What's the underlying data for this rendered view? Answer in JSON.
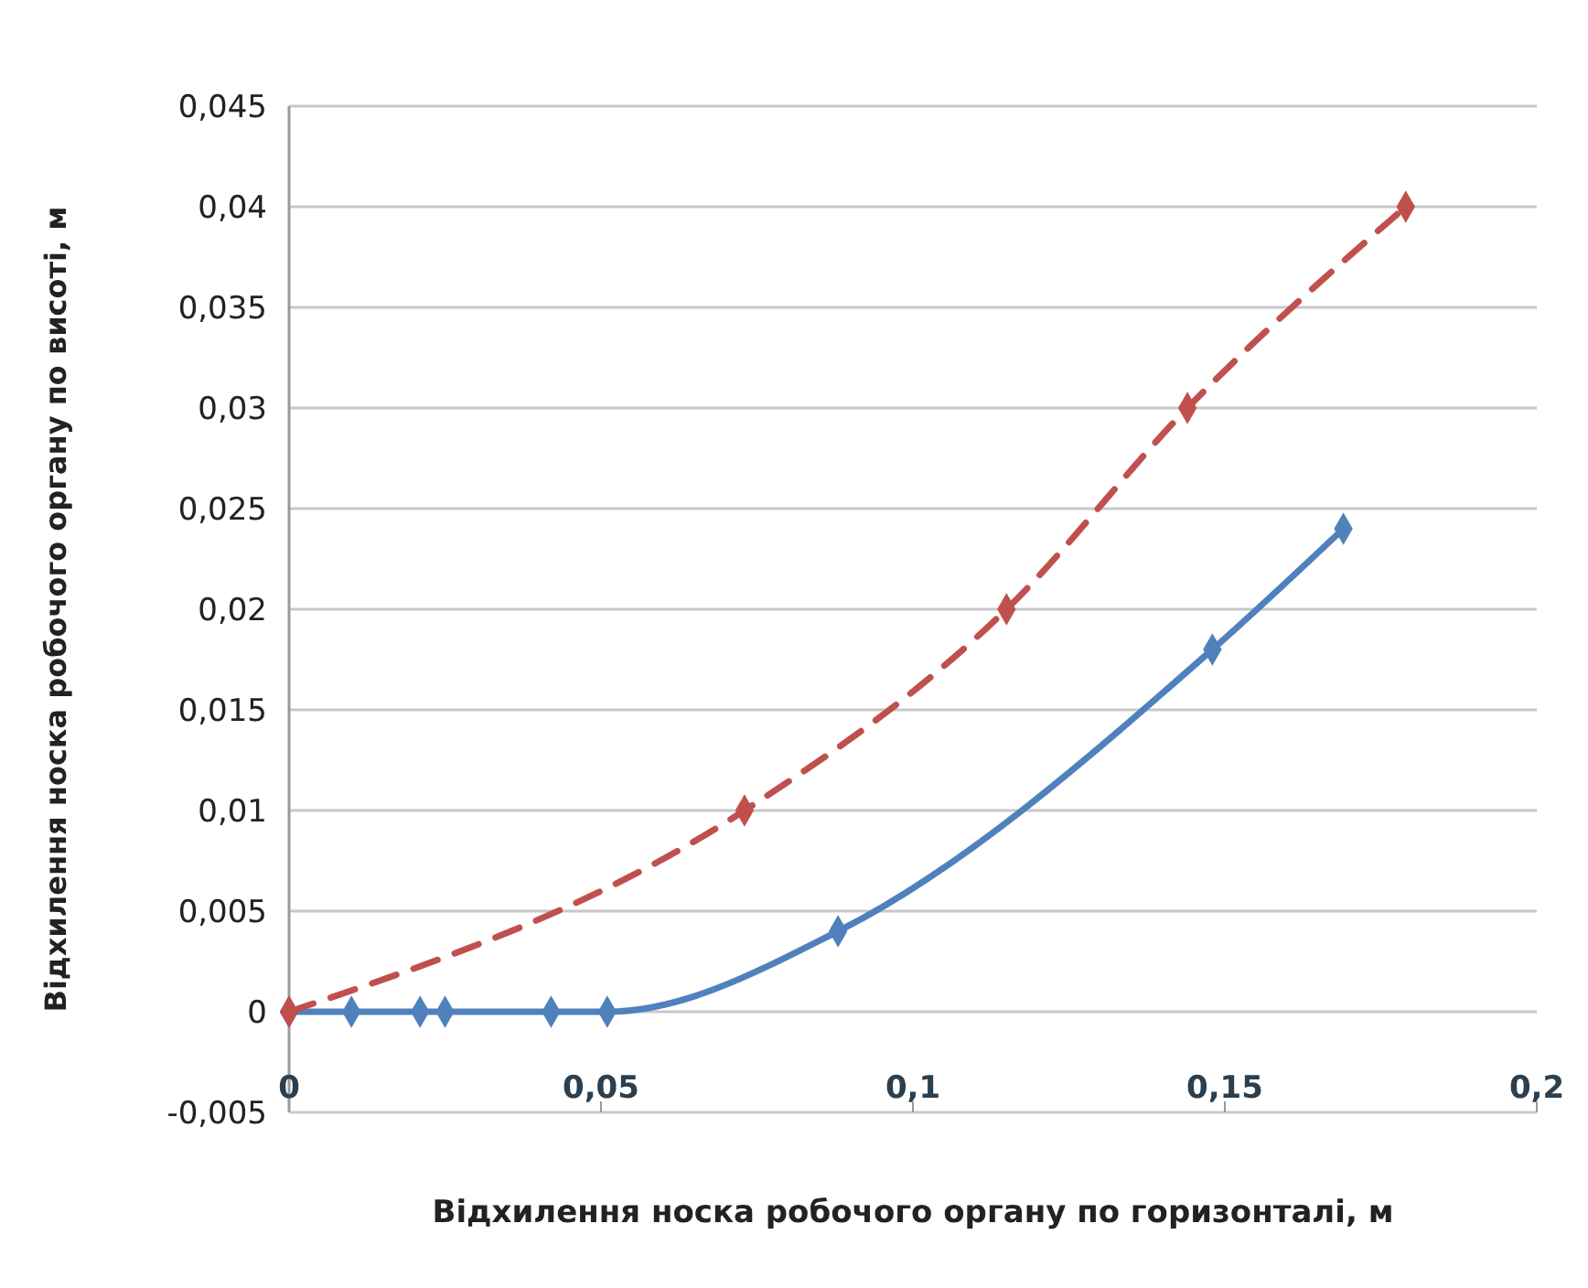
{
  "chart_data": {
    "type": "line",
    "xlabel": "Відхилення носка робочого органу по горизонталі, м",
    "ylabel": "Відхилення носка робочого органу по висоті, м",
    "xlim": [
      0,
      0.2
    ],
    "xticks": [
      {
        "value": 0,
        "label": "0"
      },
      {
        "value": 0.05,
        "label": "0,05"
      },
      {
        "value": 0.1,
        "label": "0,1"
      },
      {
        "value": 0.15,
        "label": "0,15"
      },
      {
        "value": 0.2,
        "label": "0,2"
      }
    ],
    "ylim": [
      -0.005,
      0.045
    ],
    "yticks": [
      {
        "value": -0.005,
        "label": "-0,005"
      },
      {
        "value": 0,
        "label": "0"
      },
      {
        "value": 0.005,
        "label": "0,005"
      },
      {
        "value": 0.01,
        "label": "0,01"
      },
      {
        "value": 0.015,
        "label": "0,015"
      },
      {
        "value": 0.02,
        "label": "0,02"
      },
      {
        "value": 0.025,
        "label": "0,025"
      },
      {
        "value": 0.03,
        "label": "0,03"
      },
      {
        "value": 0.035,
        "label": "0,035"
      },
      {
        "value": 0.04,
        "label": "0,04"
      },
      {
        "value": 0.045,
        "label": "0,045"
      }
    ],
    "grid": "y",
    "marker": "diamond",
    "series": [
      {
        "color": "#4f81bd",
        "line_style": "solid",
        "x": [
          0,
          0.01,
          0.021,
          0.025,
          0.042,
          0.051,
          0.088,
          0.148,
          0.169
        ],
        "values": [
          0,
          0,
          0,
          0,
          0,
          0,
          0.004,
          0.018,
          0.024
        ]
      },
      {
        "color": "#c0504d",
        "line_style": "dashed",
        "x": [
          0,
          0.073,
          0.115,
          0.144,
          0.179
        ],
        "values": [
          0,
          0.01,
          0.02,
          0.03,
          0.04
        ]
      }
    ]
  }
}
